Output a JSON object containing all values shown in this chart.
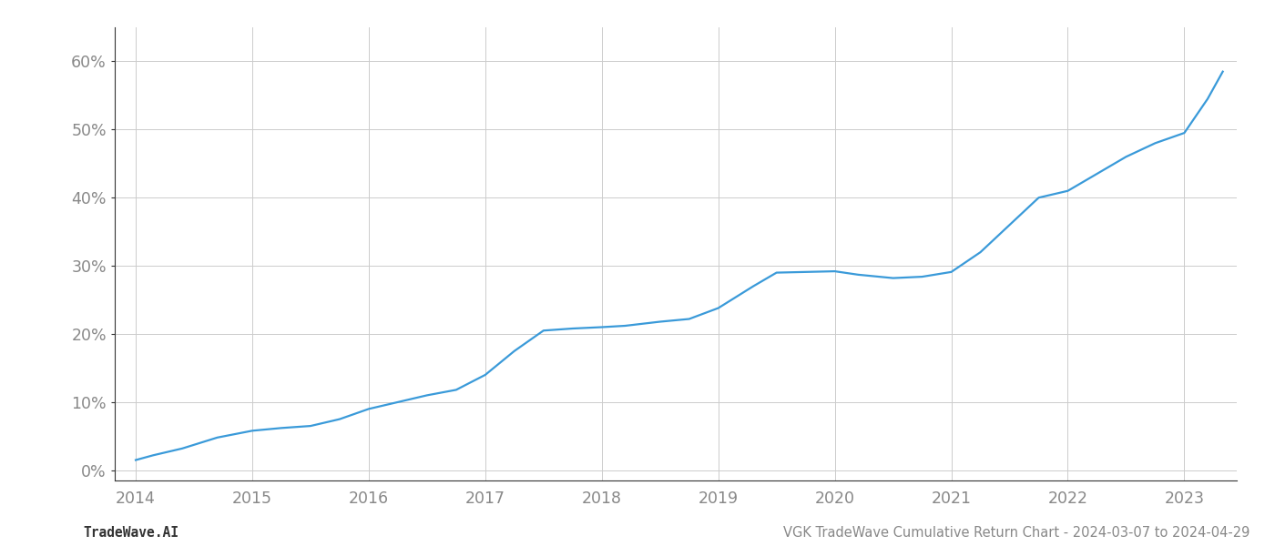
{
  "x_values": [
    2014.0,
    2014.15,
    2014.4,
    2014.7,
    2015.0,
    2015.25,
    2015.5,
    2015.75,
    2016.0,
    2016.25,
    2016.5,
    2016.75,
    2017.0,
    2017.25,
    2017.5,
    2017.75,
    2018.0,
    2018.2,
    2018.5,
    2018.75,
    2019.0,
    2019.3,
    2019.5,
    2019.75,
    2020.0,
    2020.2,
    2020.5,
    2020.75,
    2021.0,
    2021.25,
    2021.5,
    2021.75,
    2022.0,
    2022.25,
    2022.5,
    2022.75,
    2023.0,
    2023.2,
    2023.33
  ],
  "y_values": [
    0.015,
    0.022,
    0.032,
    0.048,
    0.058,
    0.062,
    0.065,
    0.075,
    0.09,
    0.1,
    0.11,
    0.118,
    0.14,
    0.175,
    0.205,
    0.208,
    0.21,
    0.212,
    0.218,
    0.222,
    0.238,
    0.27,
    0.29,
    0.291,
    0.292,
    0.287,
    0.282,
    0.284,
    0.291,
    0.32,
    0.36,
    0.4,
    0.41,
    0.435,
    0.46,
    0.48,
    0.495,
    0.545,
    0.585
  ],
  "line_color": "#3a9ad9",
  "line_width": 1.6,
  "xlim": [
    2013.82,
    2023.45
  ],
  "ylim": [
    -0.015,
    0.65
  ],
  "yticks": [
    0.0,
    0.1,
    0.2,
    0.3,
    0.4,
    0.5,
    0.6
  ],
  "ytick_labels": [
    "0%",
    "10%",
    "20%",
    "30%",
    "40%",
    "50%",
    "60%"
  ],
  "xticks": [
    2014,
    2015,
    2016,
    2017,
    2018,
    2019,
    2020,
    2021,
    2022,
    2023
  ],
  "xtick_labels": [
    "2014",
    "2015",
    "2016",
    "2017",
    "2018",
    "2019",
    "2020",
    "2021",
    "2022",
    "2023"
  ],
  "grid_color": "#cccccc",
  "grid_linewidth": 0.7,
  "background_color": "#ffffff",
  "footer_left": "TradeWave.AI",
  "footer_right": "VGK TradeWave Cumulative Return Chart - 2024-03-07 to 2024-04-29",
  "footer_fontsize": 10.5,
  "tick_fontsize": 12.5,
  "left_spine_color": "#333333",
  "bottom_spine_color": "#333333",
  "tick_color": "#888888",
  "footer_color": "#888888"
}
